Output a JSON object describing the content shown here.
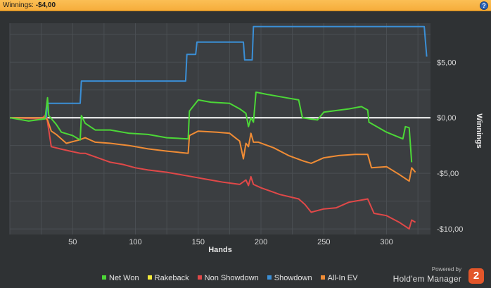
{
  "header": {
    "label": "Winnings:",
    "value": "-$4,00",
    "help_icon": "help-icon",
    "help_glyph": "?"
  },
  "colors": {
    "net_won": "#4cd837",
    "rakeback": "#f2ea3a",
    "non_showdown": "#e04848",
    "showdown": "#3b8fd6",
    "all_in_ev": "#f08c35",
    "zero_line": "#ffffff",
    "plot_bg": "#3b3e41",
    "header_bg": "#f6ad3b"
  },
  "legend": [
    "Net Won",
    "Rakeback",
    "Non Showdown",
    "Showdown",
    "All-In EV"
  ],
  "brand": {
    "powered_by": "Powered by",
    "product": "Hold'em Manager",
    "version_badge": "2"
  },
  "chart_data": {
    "type": "line",
    "xlabel": "Hands",
    "ylabel": "Winnings",
    "xlim": [
      0,
      335
    ],
    "ylim": [
      -10.5,
      8.5
    ],
    "x_ticks": [
      50,
      100,
      150,
      200,
      250,
      300
    ],
    "y_ticks": [
      5,
      0,
      -5,
      -10
    ],
    "y_tick_labels": [
      "$5,00",
      "$0,00",
      "-$5,00",
      "-$10,00"
    ],
    "grid": true,
    "zero_line": true,
    "legend_position": "bottom",
    "series": [
      {
        "name": "Net Won",
        "color": "#4cd837",
        "points": [
          [
            0,
            0
          ],
          [
            15,
            -0.3
          ],
          [
            28,
            -0.1
          ],
          [
            30,
            1.8
          ],
          [
            31,
            0.2
          ],
          [
            37,
            -0.6
          ],
          [
            41,
            -1.3
          ],
          [
            50,
            -1.6
          ],
          [
            56,
            -2.0
          ],
          [
            57,
            0.2
          ],
          [
            60,
            -0.5
          ],
          [
            68,
            -1.1
          ],
          [
            80,
            -1.1
          ],
          [
            95,
            -1.4
          ],
          [
            110,
            -1.5
          ],
          [
            125,
            -1.8
          ],
          [
            142,
            -1.9
          ],
          [
            143,
            0.6
          ],
          [
            150,
            1.6
          ],
          [
            160,
            1.4
          ],
          [
            175,
            1.3
          ],
          [
            183,
            0.8
          ],
          [
            188,
            0.4
          ],
          [
            190,
            -0.8
          ],
          [
            192,
            0.0
          ],
          [
            194,
            -0.4
          ],
          [
            196,
            2.3
          ],
          [
            205,
            2.1
          ],
          [
            220,
            1.8
          ],
          [
            230,
            1.6
          ],
          [
            233,
            0.0
          ],
          [
            245,
            -0.2
          ],
          [
            250,
            0.5
          ],
          [
            270,
            0.8
          ],
          [
            280,
            1.0
          ],
          [
            285,
            0.7
          ],
          [
            286,
            -0.4
          ],
          [
            300,
            -1.3
          ],
          [
            313,
            -1.9
          ],
          [
            315,
            -0.8
          ],
          [
            318,
            -0.9
          ],
          [
            320,
            -4.0
          ]
        ]
      },
      {
        "name": "Non Showdown",
        "color": "#e04848",
        "points": [
          [
            0,
            0
          ],
          [
            25,
            -0.1
          ],
          [
            29,
            0.3
          ],
          [
            30,
            -0.4
          ],
          [
            33,
            -2.6
          ],
          [
            40,
            -2.8
          ],
          [
            48,
            -3.0
          ],
          [
            56,
            -3.2
          ],
          [
            60,
            -3.2
          ],
          [
            70,
            -3.6
          ],
          [
            80,
            -4.0
          ],
          [
            90,
            -4.2
          ],
          [
            100,
            -4.5
          ],
          [
            110,
            -4.7
          ],
          [
            125,
            -4.9
          ],
          [
            140,
            -5.2
          ],
          [
            155,
            -5.5
          ],
          [
            170,
            -5.8
          ],
          [
            183,
            -6.0
          ],
          [
            188,
            -5.6
          ],
          [
            190,
            -6.1
          ],
          [
            192,
            -5.3
          ],
          [
            194,
            -6.0
          ],
          [
            200,
            -6.3
          ],
          [
            215,
            -6.9
          ],
          [
            230,
            -7.3
          ],
          [
            235,
            -7.8
          ],
          [
            240,
            -8.5
          ],
          [
            250,
            -8.2
          ],
          [
            260,
            -8.1
          ],
          [
            270,
            -7.6
          ],
          [
            280,
            -7.4
          ],
          [
            285,
            -7.3
          ],
          [
            290,
            -8.6
          ],
          [
            300,
            -8.8
          ],
          [
            310,
            -9.4
          ],
          [
            318,
            -10.0
          ],
          [
            320,
            -9.2
          ],
          [
            323,
            -9.4
          ]
        ]
      },
      {
        "name": "Showdown",
        "color": "#3b8fd6",
        "points": [
          [
            0,
            0
          ],
          [
            29,
            0
          ],
          [
            30,
            1.3
          ],
          [
            56,
            1.3
          ],
          [
            57,
            3.3
          ],
          [
            140,
            3.3
          ],
          [
            141,
            5.7
          ],
          [
            148,
            5.7
          ],
          [
            149,
            6.8
          ],
          [
            186,
            6.8
          ],
          [
            187,
            5.2
          ],
          [
            193,
            5.2
          ],
          [
            194,
            8.2
          ],
          [
            330,
            8.2
          ],
          [
            332,
            5.5
          ]
        ]
      },
      {
        "name": "All-In EV",
        "color": "#f08c35",
        "points": [
          [
            0,
            0
          ],
          [
            28,
            0
          ],
          [
            30,
            -0.2
          ],
          [
            33,
            -1.2
          ],
          [
            37,
            -1.5
          ],
          [
            45,
            -2.3
          ],
          [
            55,
            -2.0
          ],
          [
            60,
            -1.8
          ],
          [
            68,
            -2.2
          ],
          [
            80,
            -2.3
          ],
          [
            95,
            -2.5
          ],
          [
            110,
            -2.8
          ],
          [
            125,
            -3.0
          ],
          [
            142,
            -3.2
          ],
          [
            143,
            -1.6
          ],
          [
            150,
            -1.2
          ],
          [
            165,
            -1.3
          ],
          [
            175,
            -1.4
          ],
          [
            183,
            -2.1
          ],
          [
            186,
            -3.7
          ],
          [
            188,
            -2.3
          ],
          [
            190,
            -2.6
          ],
          [
            192,
            -1.4
          ],
          [
            194,
            -2.2
          ],
          [
            198,
            -2.2
          ],
          [
            210,
            -2.7
          ],
          [
            222,
            -3.4
          ],
          [
            234,
            -3.9
          ],
          [
            240,
            -4.1
          ],
          [
            250,
            -3.6
          ],
          [
            262,
            -3.4
          ],
          [
            275,
            -3.3
          ],
          [
            285,
            -3.3
          ],
          [
            288,
            -4.5
          ],
          [
            300,
            -4.4
          ],
          [
            310,
            -5.1
          ],
          [
            318,
            -5.7
          ],
          [
            320,
            -4.5
          ],
          [
            323,
            -4.9
          ]
        ]
      }
    ]
  }
}
